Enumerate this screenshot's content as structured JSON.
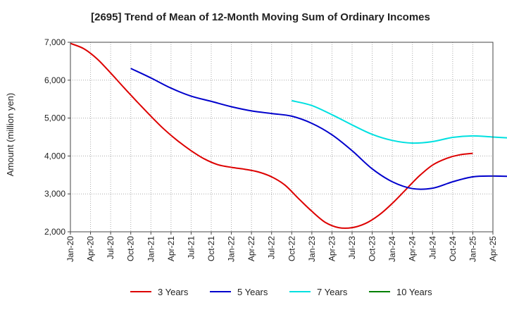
{
  "chart_data": {
    "type": "line",
    "title": "[2695]  Trend of Mean of 12-Month Moving Sum of Ordinary Incomes",
    "xlabel": "",
    "ylabel": "Amount (million yen)",
    "ylim": [
      2000,
      7000
    ],
    "yticks": [
      2000,
      3000,
      4000,
      5000,
      6000,
      7000
    ],
    "ytick_labels": [
      "2,000",
      "3,000",
      "4,000",
      "5,000",
      "6,000",
      "7,000"
    ],
    "x_tick_labels": [
      "Jan-20",
      "Apr-20",
      "Jul-20",
      "Oct-20",
      "Jan-21",
      "Apr-21",
      "Jul-21",
      "Oct-21",
      "Jan-22",
      "Apr-22",
      "Jul-22",
      "Oct-22",
      "Jan-23",
      "Apr-23",
      "Jul-23",
      "Oct-23",
      "Jan-24",
      "Apr-24",
      "Jul-24",
      "Oct-24",
      "Jan-25",
      "Apr-25"
    ],
    "grid": true,
    "legend": "bottom",
    "series": [
      {
        "name": "3 Years",
        "color": "#dd0000",
        "points": [
          [
            0,
            6970
          ],
          [
            2,
            6830
          ],
          [
            4,
            6560
          ],
          [
            6,
            6190
          ],
          [
            8,
            5800
          ],
          [
            10,
            5420
          ],
          [
            12,
            5050
          ],
          [
            14,
            4700
          ],
          [
            16,
            4400
          ],
          [
            18,
            4140
          ],
          [
            20,
            3920
          ],
          [
            22,
            3770
          ],
          [
            24,
            3700
          ],
          [
            26,
            3650
          ],
          [
            28,
            3580
          ],
          [
            30,
            3450
          ],
          [
            32,
            3230
          ],
          [
            34,
            2880
          ],
          [
            36,
            2540
          ],
          [
            38,
            2250
          ],
          [
            40,
            2110
          ],
          [
            42,
            2110
          ],
          [
            44,
            2220
          ],
          [
            46,
            2440
          ],
          [
            48,
            2750
          ],
          [
            50,
            3110
          ],
          [
            52,
            3470
          ],
          [
            54,
            3760
          ],
          [
            56,
            3930
          ],
          [
            58,
            4030
          ],
          [
            60,
            4070
          ]
        ]
      },
      {
        "name": "5 Years",
        "color": "#0000cc",
        "points": [
          [
            9,
            6310
          ],
          [
            12,
            6060
          ],
          [
            15,
            5790
          ],
          [
            18,
            5580
          ],
          [
            21,
            5440
          ],
          [
            24,
            5300
          ],
          [
            27,
            5190
          ],
          [
            30,
            5120
          ],
          [
            33,
            5050
          ],
          [
            36,
            4860
          ],
          [
            39,
            4560
          ],
          [
            42,
            4140
          ],
          [
            45,
            3660
          ],
          [
            48,
            3320
          ],
          [
            51,
            3140
          ],
          [
            54,
            3150
          ],
          [
            57,
            3320
          ],
          [
            60,
            3450
          ],
          [
            63,
            3470
          ],
          [
            66,
            3460
          ]
        ]
      },
      {
        "name": "7 Years",
        "color": "#00e0e0",
        "points": [
          [
            33,
            5460
          ],
          [
            36,
            5330
          ],
          [
            39,
            5090
          ],
          [
            42,
            4820
          ],
          [
            45,
            4570
          ],
          [
            48,
            4410
          ],
          [
            51,
            4340
          ],
          [
            54,
            4380
          ],
          [
            57,
            4490
          ],
          [
            60,
            4530
          ],
          [
            63,
            4500
          ],
          [
            66,
            4470
          ]
        ]
      },
      {
        "name": "10 Years",
        "color": "#008000",
        "points": []
      }
    ]
  }
}
